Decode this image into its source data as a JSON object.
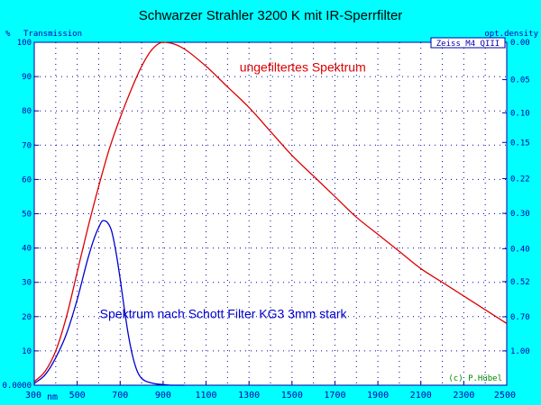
{
  "chart_data": {
    "type": "line",
    "title": "Schwarzer Strahler 3200 K mit IR-Sperrfilter",
    "left_axis_unit": "%",
    "left_axis_label": "Transmission",
    "right_axis_label": "opt.density",
    "x_unit": "nm",
    "xlim": [
      300,
      2500
    ],
    "ylim": [
      0,
      100
    ],
    "x_ticks": [
      "300",
      "500",
      "700",
      "900",
      "1100",
      "1300",
      "1500",
      "1700",
      "1900",
      "2100",
      "2300",
      "2500"
    ],
    "y_ticks": [
      {
        "value": 0,
        "label": "0.0000"
      },
      {
        "value": 10,
        "label": "10"
      },
      {
        "value": 20,
        "label": "20"
      },
      {
        "value": 30,
        "label": "30"
      },
      {
        "value": 40,
        "label": "40"
      },
      {
        "value": 50,
        "label": "50"
      },
      {
        "value": 60,
        "label": "60"
      },
      {
        "value": 70,
        "label": "70"
      },
      {
        "value": 80,
        "label": "80"
      },
      {
        "value": 90,
        "label": "90"
      },
      {
        "value": 100,
        "label": "100"
      }
    ],
    "right_ticks": [
      {
        "value": 0.0,
        "label": "0.00"
      },
      {
        "value": 0.05,
        "label": "0.05"
      },
      {
        "value": 0.1,
        "label": "0.10"
      },
      {
        "value": 0.15,
        "label": "0.15"
      },
      {
        "value": 0.22,
        "label": "0.22"
      },
      {
        "value": 0.3,
        "label": "0.30"
      },
      {
        "value": 0.4,
        "label": "0.40"
      },
      {
        "value": 0.52,
        "label": "0.52"
      },
      {
        "value": 0.7,
        "label": "0.70"
      },
      {
        "value": 1.0,
        "label": "1.00"
      }
    ],
    "instrument_label": "Zeiss M4 QIII",
    "copyright": "(c) P.Hübel",
    "grid": true,
    "series": [
      {
        "name": "ungefiltertes Spektrum",
        "color": "#dd0000",
        "x": [
          300,
          350,
          400,
          450,
          500,
          550,
          600,
          650,
          700,
          750,
          800,
          850,
          900,
          950,
          1000,
          1100,
          1200,
          1300,
          1400,
          1500,
          1600,
          1700,
          1800,
          1900,
          2000,
          2100,
          2200,
          2300,
          2400,
          2500
        ],
        "y": [
          1,
          4,
          10,
          20,
          33,
          46,
          58,
          69,
          78,
          86,
          93,
          98,
          100,
          99.5,
          98,
          93,
          87,
          81,
          74,
          67,
          61,
          55,
          49,
          44,
          39,
          34,
          30,
          26,
          22,
          18
        ]
      },
      {
        "name": "Spektrum nach Schott Filter KG3 3mm stark",
        "color": "#0000cc",
        "x": [
          300,
          350,
          400,
          450,
          500,
          550,
          580,
          600,
          620,
          640,
          660,
          680,
          700,
          720,
          740,
          760,
          780,
          800,
          850,
          900,
          950,
          1000
        ],
        "y": [
          0.5,
          3,
          8,
          15,
          25,
          37,
          43,
          46,
          48,
          47.5,
          45,
          39,
          31,
          22,
          14,
          8,
          4,
          2,
          0.6,
          0.2,
          0,
          0
        ]
      }
    ],
    "annotations": [
      {
        "text": "ungefiltertes Spektrum",
        "x": 1550,
        "y": 91.5,
        "color": "#dd0000"
      },
      {
        "text": "Spektrum nach Schott Filter KG3 3mm stark",
        "x": 1180,
        "y": 19.5,
        "color": "#0000cc"
      }
    ]
  }
}
